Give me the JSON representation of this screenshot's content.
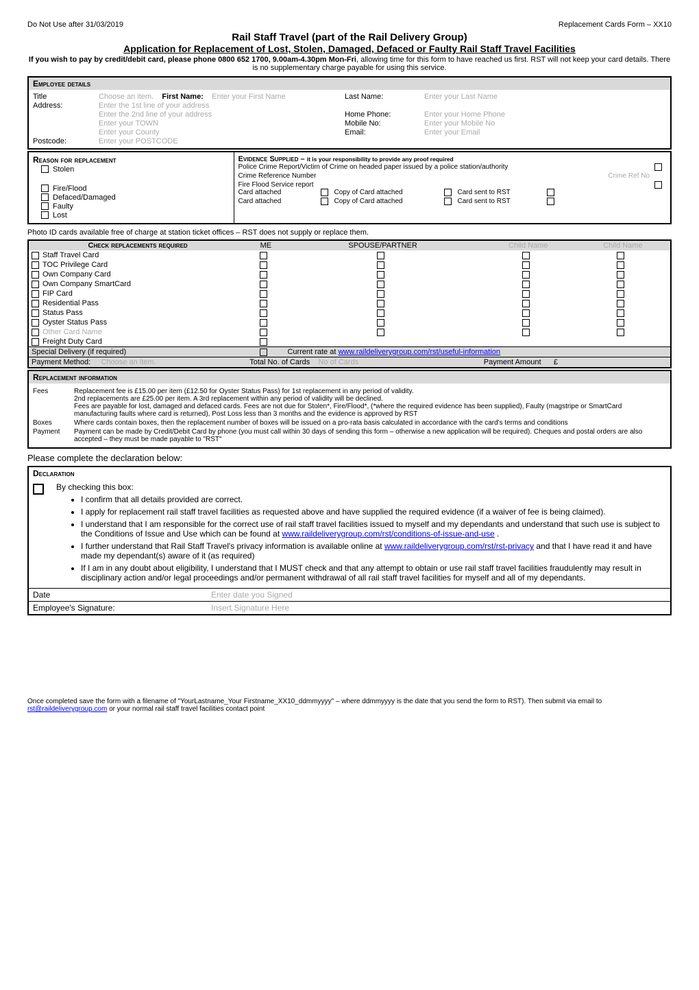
{
  "header": {
    "do_not_use": "Do Not Use after 31/03/2019",
    "form_id": "Replacement Cards Form – XX10",
    "title": "Rail Staff Travel (part of the Rail Delivery Group)",
    "subtitle": "Application for Replacement of Lost, Stolen, Damaged, Defaced or Faulty Rail Staff Travel Facilities",
    "intro1": "If you wish to pay by credit/debit card, please phone 0800 652 1700, 9.00am-4.30pm Mon-Fri",
    "intro2": ", allowing time for this form to have reached us first.  RST will not keep your card details. There is no supplementary charge payable for using this service."
  },
  "employee": {
    "heading": "Employee details",
    "title_lbl": "Title",
    "title_ph": "Choose an item.",
    "first_lbl": "First Name:",
    "first_ph": "Enter your First Name",
    "last_lbl": "Last Name:",
    "last_ph": "Enter your Last Name",
    "addr_lbl": "Address:",
    "addr1_ph": "Enter the 1st line of your address",
    "addr2_ph": "Enter the 2nd line of your address",
    "town_ph": "Enter your TOWN",
    "county_ph": "Enter your County",
    "postcode_lbl": "Postcode:",
    "postcode_ph": "Enter your POSTCODE",
    "homeph_lbl": "Home Phone:",
    "homeph_ph": "Enter your Home Phone",
    "mobile_lbl": "Mobile No:",
    "mobile_ph": "Enter your Mobile No",
    "email_lbl": "Email:",
    "email_ph": "Enter your Email"
  },
  "reason": {
    "heading": "Reason for replacement",
    "items": [
      "Stolen",
      "Fire/Flood",
      "Defaced/Damaged",
      "Faulty",
      "Lost"
    ],
    "evidence_heading": "Evidence Supplied – ",
    "evidence_note": "it is your responsibility to provide any proof required",
    "police": "Police Crime Report/Victim of Crime on headed paper issued by a police station/authority",
    "crime_ref_lbl": "Crime Reference Number",
    "crime_ref_ph": "Crime Ref No",
    "fireflood": "Fire Flood Service report",
    "card_attached": "Card attached",
    "copy_attached": "Copy of Card attached",
    "card_sent": "Card sent to RST"
  },
  "photo_note": "Photo ID cards available free of charge at station ticket offices – RST does not supply or replace them.",
  "replacements": {
    "heading": "Check replacements required",
    "cols": [
      "ME",
      "SPOUSE/PARTNER",
      "Child Name",
      "Child Name"
    ],
    "rows": [
      "Staff Travel Card",
      "TOC Privilege Card",
      "Own Company Card",
      "Own Company SmartCard",
      "FIP Card",
      "Residential Pass",
      "Status Pass",
      "Oyster Status Pass",
      "Other Card Name",
      "Freight Duty Card"
    ],
    "special_lbl": "Special Delivery (if required)",
    "special_rate_pre": "Current rate at ",
    "special_rate_link": "www.raildeliverygroup.com/rst/useful-information",
    "payment_method_lbl": "Payment Method:",
    "payment_method_ph": "Choose an item.",
    "total_cards_lbl": "Total No. of Cards",
    "total_cards_ph": "No of Cards",
    "payment_amount_lbl": "Payment Amount",
    "payment_amount_ph": "£"
  },
  "info": {
    "heading": "Replacement information",
    "fees_lbl": "Fees",
    "fees1": "Replacement fee is £15.00 per item (£12.50 for Oyster Status Pass) for 1st replacement in any period of validity.",
    "fees2": "2nd replacements are £25.00 per item.  A 3rd replacement within any period of validity will be declined.",
    "fees3": "Fees are payable for lost, damaged and defaced cards.  Fees are not due for Stolen*, Fire/Flood*, (*where the required evidence has been supplied), Faulty (magstripe or SmartCard manufacturing faults where card is returned), Post Loss less than 3 months and the evidence is approved by RST",
    "boxes_lbl": "Boxes",
    "boxes": "Where cards contain boxes, then the replacement number of boxes will be issued on a pro-rata basis calculated in accordance with the card's terms and conditions",
    "payment_lbl": "Payment",
    "payment": "Payment can be made by Credit/Debit Card by phone (you must call within 30 days of sending this form – otherwise a new application will be required).  Cheques and postal orders are also accepted – they must be made payable to \"RST\""
  },
  "please_complete": "Please complete the declaration below:",
  "declaration": {
    "heading": "Declaration",
    "intro": "By checking this box:",
    "d1": "I confirm that all details provided are correct.",
    "d2": "I apply for replacement rail staff travel facilities as requested above and have supplied the required evidence (if a waiver of fee is being claimed).",
    "d3a": "I understand that I am responsible for the correct use of rail staff travel facilities issued to myself and my dependants and understand that such use is subject to the Conditions of Issue and Use which can be found at ",
    "d3link": "www.raildeliverygroup.com/rst/conditions-of-issue-and-use",
    "d3b": " .",
    "d4a": "I further understand that Rail Staff Travel's privacy information is available online at ",
    "d4link": "www.raildeliverygroup.com/rst/rst-privacy",
    "d4b": "   and that I have read it and have made my dependant(s) aware of it (as required)",
    "d5": "If I am in any doubt about eligibility, I understand that I MUST check and that any attempt to obtain or use rail staff travel facilities fraudulently may result in disciplinary action and/or legal proceedings and/or permanent withdrawal of all rail staff travel facilities for myself and all of my dependants.",
    "date_lbl": "Date",
    "date_ph": "Enter date you Signed",
    "sig_lbl": "Employee's Signature:",
    "sig_ph": "Insert Signature Here"
  },
  "footer": {
    "t1": "Once completed save the form with a filename of \"YourLastname_Your Firstname_XX10_ddmmyyyy\" – where ddmmyyyy is the date that you send the form to RST).  Then submit via email to ",
    "link": "rst@raildeliverygroup.com",
    "t2": " or your normal rail staff travel facilities contact point"
  }
}
